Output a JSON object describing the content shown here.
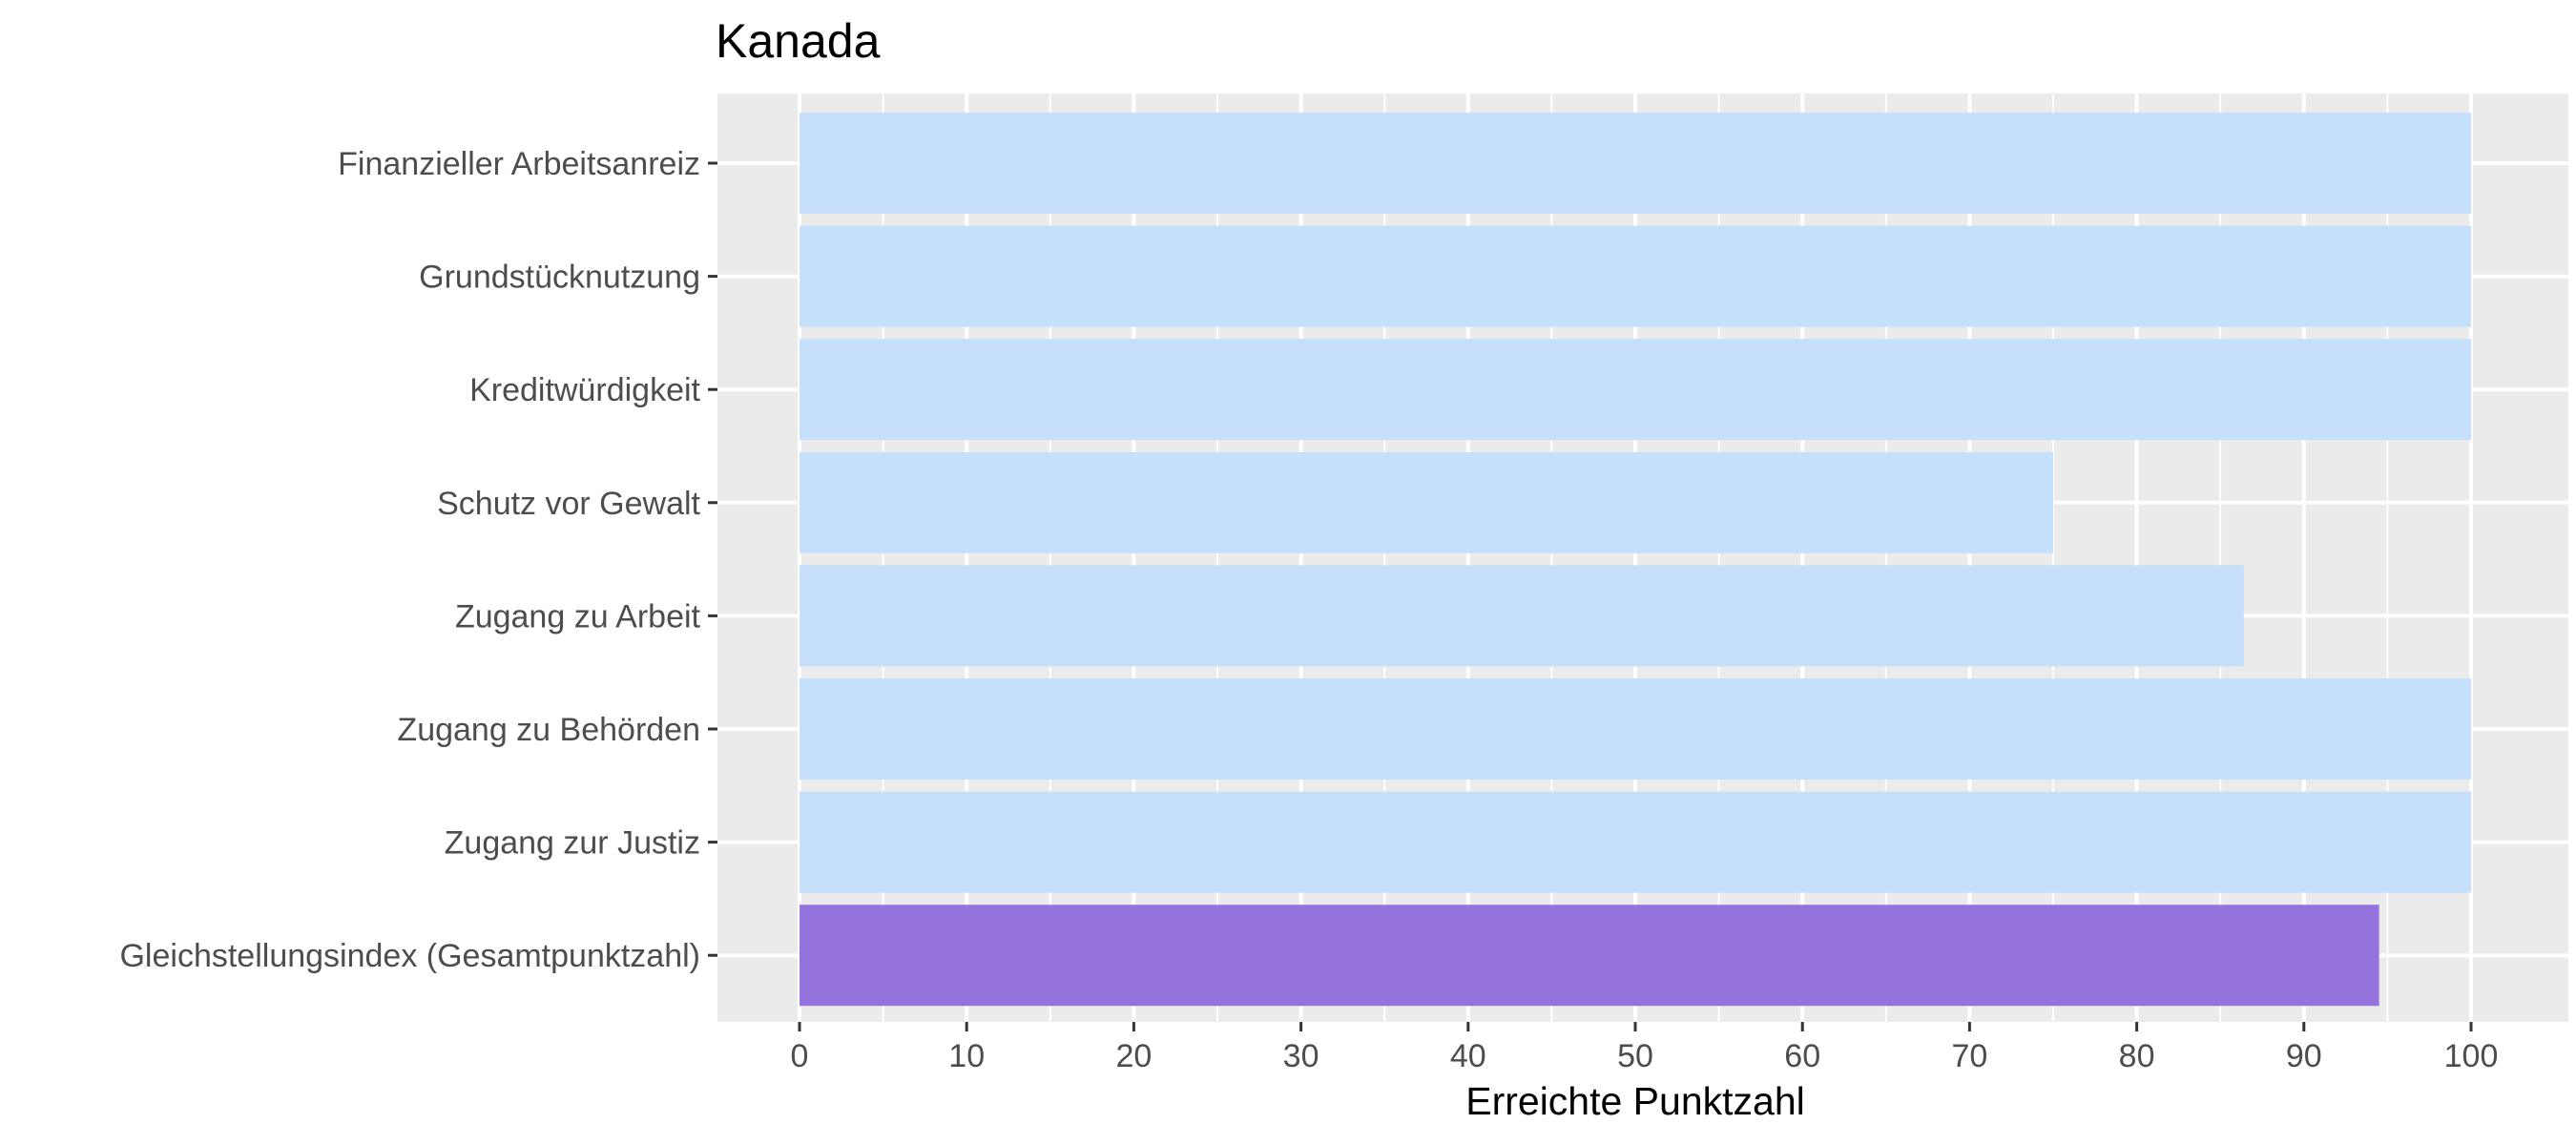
{
  "chart_data": {
    "type": "bar",
    "orientation": "horizontal",
    "title": "Kanada",
    "xlabel": "Erreichte Punktzahl",
    "ylabel": "",
    "xlim": [
      0,
      100
    ],
    "xticks": [
      0,
      10,
      20,
      30,
      40,
      50,
      60,
      70,
      80,
      90,
      100
    ],
    "grid": true,
    "legend": "none",
    "categories": [
      "Finanzieller Arbeitsanreiz",
      "Grundstücknutzung",
      "Kreditwürdigkeit",
      "Schutz vor Gewalt",
      "Zugang zu Arbeit",
      "Zugang zu Behörden",
      "Zugang zur Justiz",
      "Gleichstellungsindex (Gesamtpunktzahl)"
    ],
    "values": [
      100,
      100,
      100,
      75,
      86.4,
      100,
      100,
      94.5
    ],
    "colors": [
      "#c6e0fb",
      "#c6e0fb",
      "#c6e0fb",
      "#c6e0fb",
      "#c6e0fb",
      "#c6e0fb",
      "#c6e0fb",
      "#9573dc"
    ],
    "panel_background": "#ebebeb",
    "grid_color": "#ffffff"
  }
}
